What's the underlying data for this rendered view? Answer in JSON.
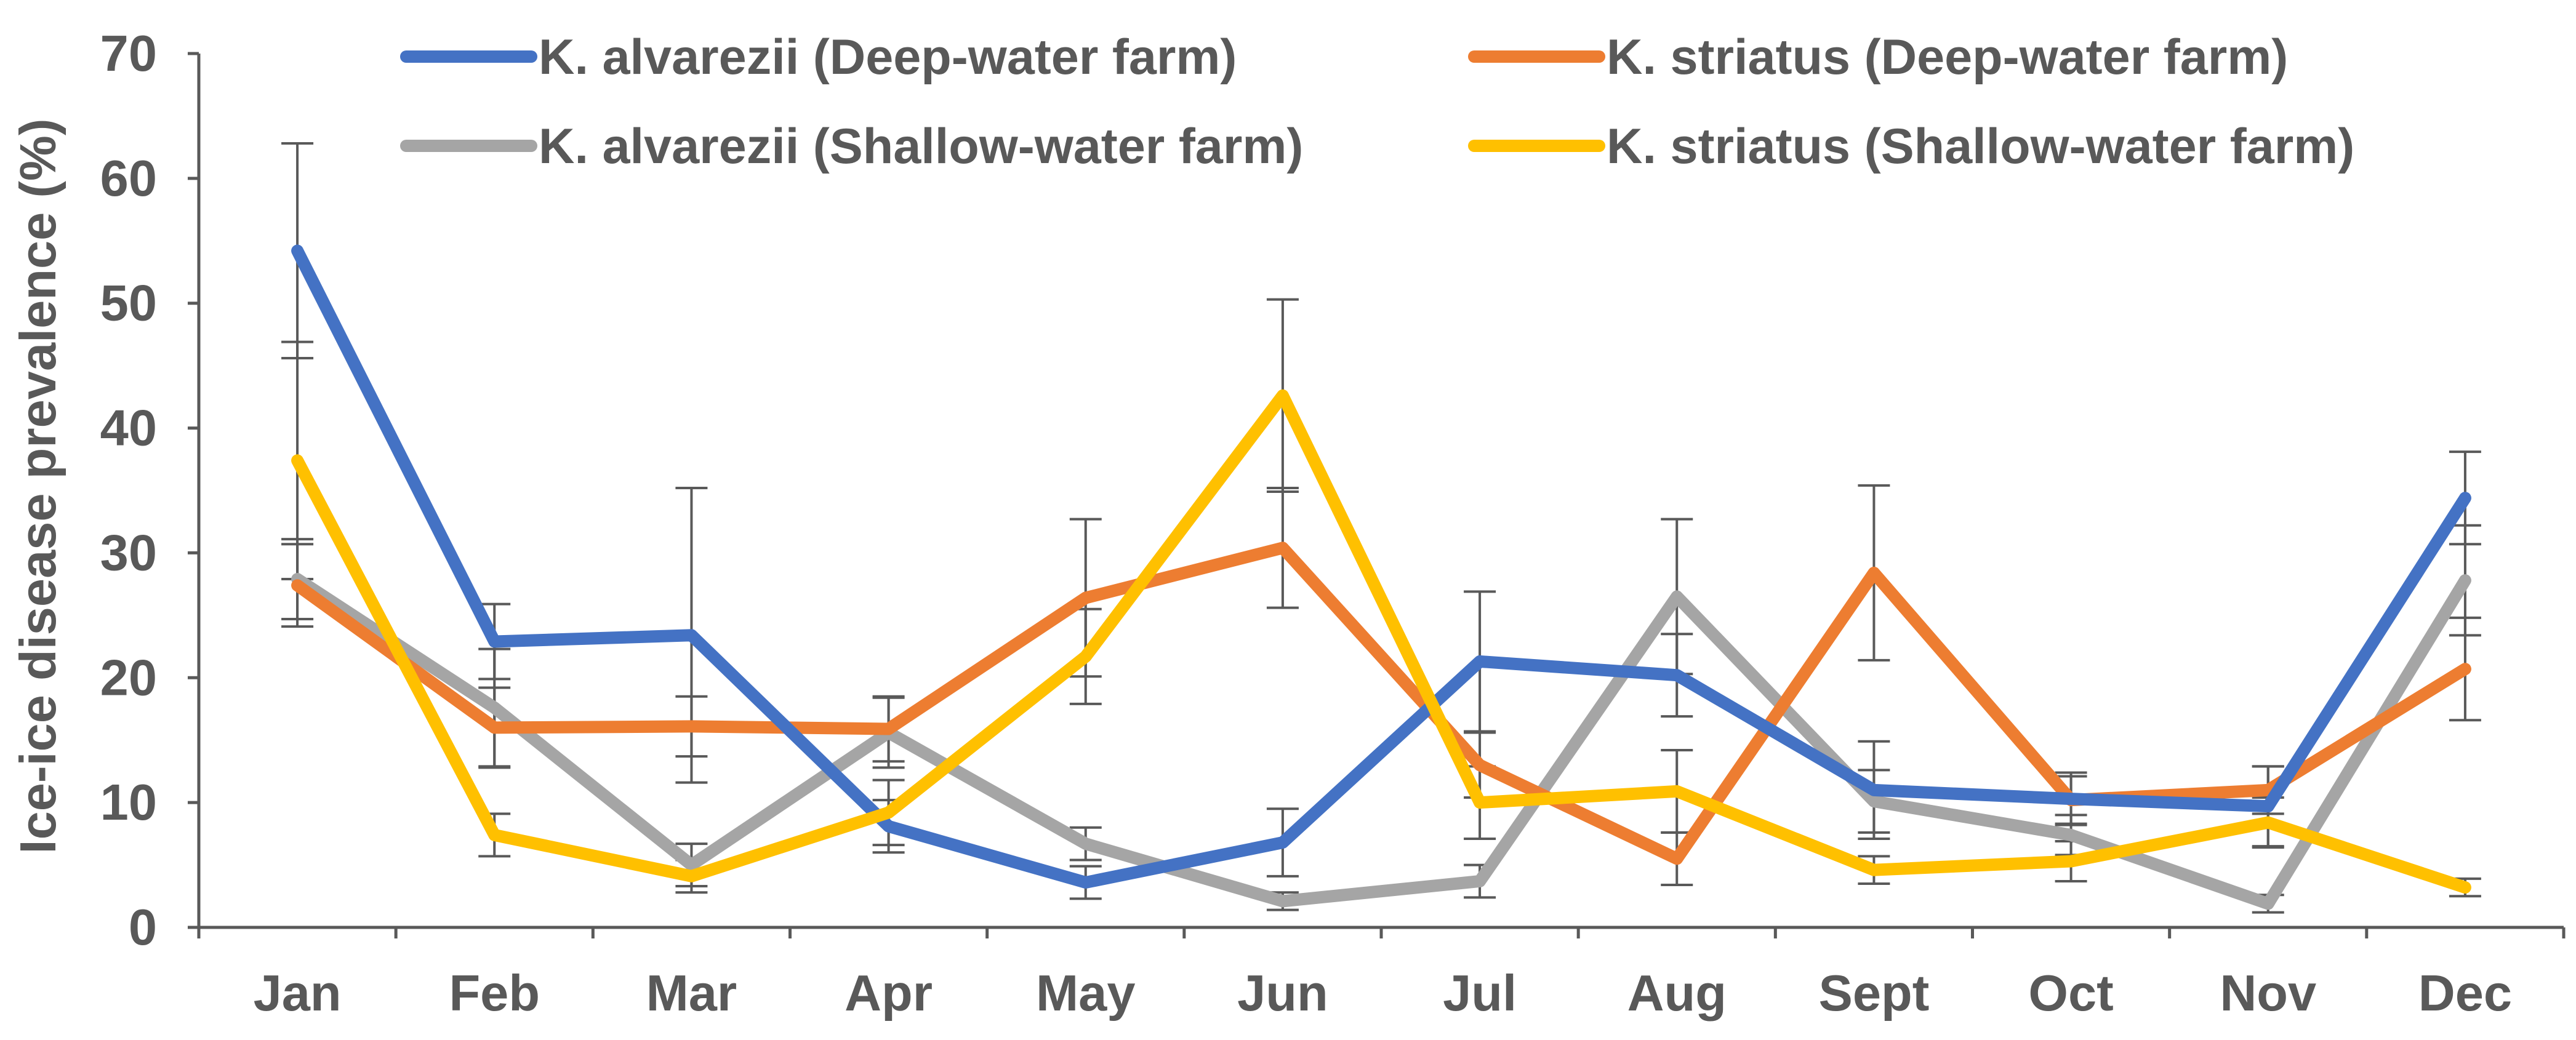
{
  "chart_data": {
    "type": "line",
    "title": "",
    "xlabel": "",
    "ylabel": "Ice-ice disease prevalence (%)",
    "ylim": [
      0,
      70
    ],
    "yticks": [
      "0",
      "10",
      "20",
      "30",
      "40",
      "50",
      "60",
      "70"
    ],
    "categories": [
      "Jan",
      "Feb",
      "Mar",
      "Apr",
      "May",
      "Jun",
      "Jul",
      "Aug",
      "Sept",
      "Oct",
      "Nov",
      "Dec"
    ],
    "grid": false,
    "legend_position": "top",
    "series": [
      {
        "name": "K. alvarezii (Deep-water farm)",
        "color": "#4472C4",
        "values": [
          54.2,
          22.9,
          23.4,
          8.1,
          3.6,
          6.8,
          21.3,
          20.2,
          11.0,
          10.3,
          9.7,
          34.4
        ],
        "errors": [
          8.6,
          3.0,
          11.8,
          2.1,
          1.3,
          2.7,
          5.6,
          3.3,
          3.9,
          2.1,
          3.2,
          3.7
        ]
      },
      {
        "name": "K. striatus (Deep-water farm)",
        "color": "#ED7D31",
        "values": [
          27.4,
          16.0,
          16.1,
          15.9,
          26.4,
          30.4,
          13.0,
          5.5,
          28.4,
          10.2,
          11.0,
          20.7
        ],
        "errors": [
          3.3,
          3.2,
          2.4,
          2.6,
          6.3,
          4.8,
          2.6,
          2.1,
          7.0,
          1.9,
          1.9,
          4.1
        ]
      },
      {
        "name": "K. alvarezii (Shallow-water farm)",
        "color": "#A5A5A5",
        "values": [
          27.9,
          17.6,
          5.0,
          15.6,
          6.7,
          2.1,
          3.7,
          26.5,
          10.1,
          7.4,
          1.9,
          27.8
        ],
        "errors": [
          3.2,
          4.7,
          1.7,
          2.8,
          1.3,
          0.7,
          1.3,
          6.2,
          2.5,
          1.6,
          0.7,
          4.4
        ]
      },
      {
        "name": "K. striatus (Shallow-water farm)",
        "color": "#FFC000",
        "values": [
          37.4,
          7.4,
          4.1,
          9.2,
          21.7,
          42.6,
          10.0,
          10.9,
          4.6,
          5.3,
          8.4,
          3.2
        ],
        "errors": [
          9.5,
          1.7,
          1.3,
          2.6,
          3.8,
          7.7,
          2.9,
          3.3,
          1.1,
          1.6,
          2.0,
          0.7
        ]
      }
    ]
  }
}
